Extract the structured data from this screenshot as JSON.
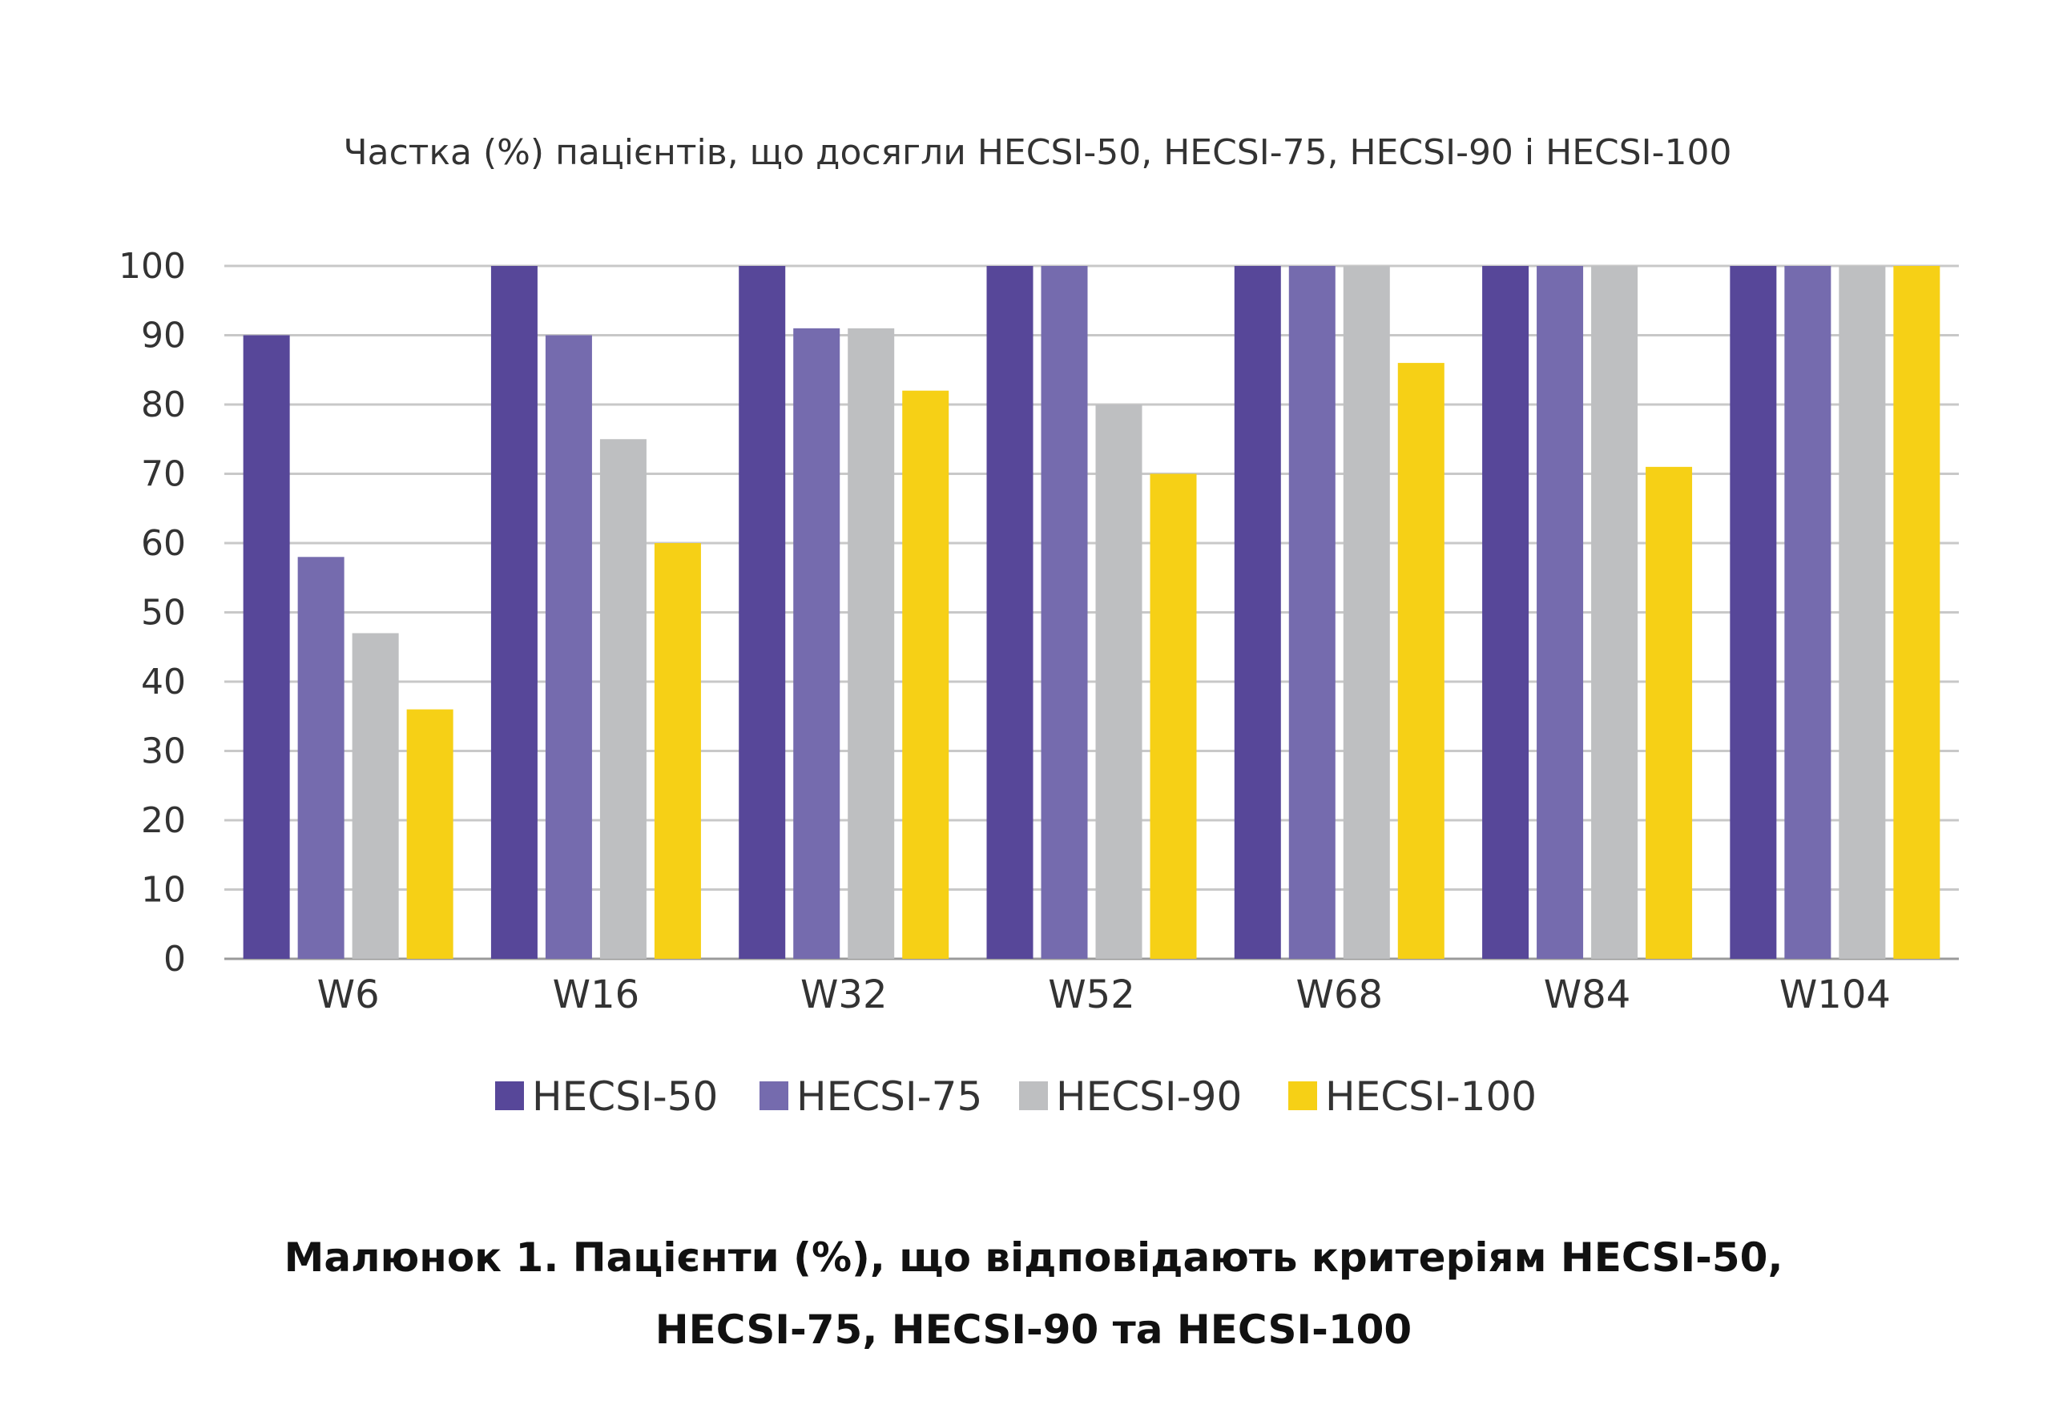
{
  "chart_data": {
    "type": "bar",
    "title": "Частка (%) пацієнтів, що досягли HECSI-50, HECSI-75, HECSI-90 і HECSI-100",
    "categories": [
      "W6",
      "W16",
      "W32",
      "W52",
      "W68",
      "W84",
      "W104"
    ],
    "series": [
      {
        "name": "HECSI-50",
        "color": "#574799",
        "values": [
          90,
          100,
          100,
          100,
          100,
          100,
          100
        ]
      },
      {
        "name": "HECSI-75",
        "color": "#756bae",
        "values": [
          58,
          90,
          91,
          100,
          100,
          100,
          100
        ]
      },
      {
        "name": "HECSI-90",
        "color": "#bebfc1",
        "values": [
          47,
          75,
          91,
          80,
          100,
          100,
          100
        ]
      },
      {
        "name": "HECSI-100",
        "color": "#f6d016",
        "values": [
          36,
          60,
          82,
          70,
          86,
          71,
          100
        ]
      }
    ],
    "yticks": [
      "0",
      "10",
      "20",
      "30",
      "40",
      "50",
      "60",
      "70",
      "80",
      "90",
      "100"
    ],
    "ylim": [
      0,
      100
    ],
    "grid": true,
    "legend": "bottom"
  },
  "caption": {
    "line1": "Малюнок 1. Пацієнти (%), що відповідають критеріям HECSI-50,",
    "line2": "HECSI-75, HECSI-90 та HECSI-100"
  }
}
